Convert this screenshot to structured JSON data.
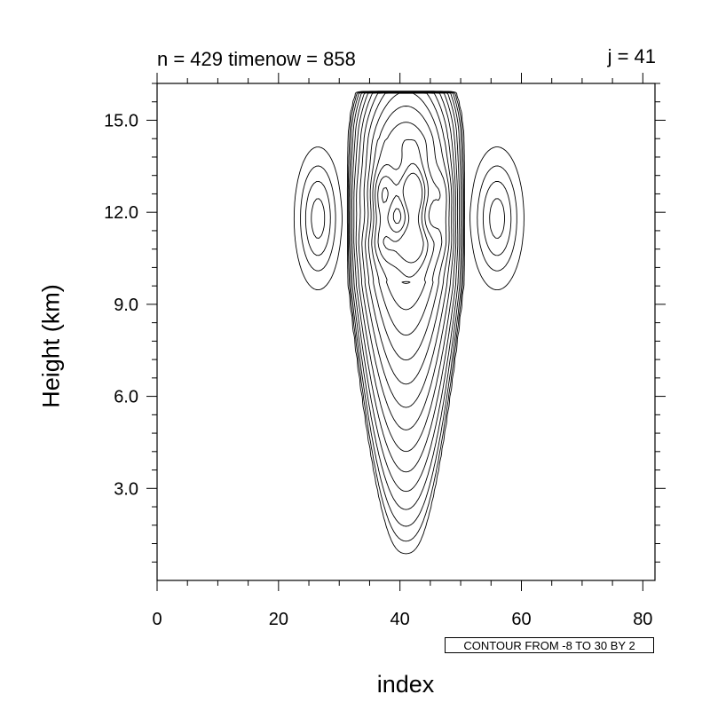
{
  "chart_data": {
    "type": "contour",
    "title_left": "n = 429 timenow = 858",
    "title_right": "j = 41",
    "xlabel": "index",
    "ylabel": "Height (km)",
    "xlim": [
      0,
      82
    ],
    "ylim": [
      0.0,
      16.2
    ],
    "x_ticks": [
      0,
      20,
      40,
      60,
      80
    ],
    "x_tick_labels": [
      "0",
      "20",
      "40",
      "60",
      "80"
    ],
    "y_ticks": [
      3.0,
      6.0,
      9.0,
      12.0,
      15.0
    ],
    "y_tick_labels": [
      "3.0",
      "6.0",
      "9.0",
      "12.0",
      "15.0"
    ],
    "contour_info": "CONTOUR FROM -8 TO 30 BY 2",
    "contour_levels": {
      "min": -8,
      "max": 30,
      "step": 2
    },
    "negative_contours": "dashed",
    "positive_contours": "solid",
    "grid": false,
    "features": {
      "updraft": {
        "center_index": 41,
        "base_height_km": 0.6,
        "top_height_km": 15.9,
        "max_half_width_index": 10
      },
      "downdraft_left": {
        "center_index": 26.5,
        "center_height_km": 11.8
      },
      "downdraft_right": {
        "center_index": 56,
        "center_height_km": 11.8
      }
    }
  }
}
